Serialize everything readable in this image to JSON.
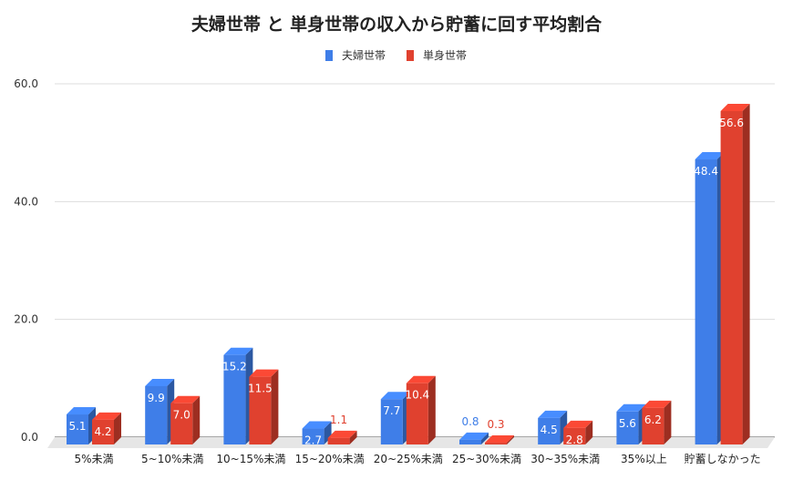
{
  "chart_data": {
    "type": "bar",
    "style": "3d-grouped",
    "title": "夫婦世帯 と 単身世帯の収入から貯蓄に回す平均割合",
    "xlabel": "",
    "ylabel": "",
    "ylim": [
      0,
      60
    ],
    "yticks": [
      "0.0",
      "20.0",
      "40.0",
      "60.0"
    ],
    "ytick_values": [
      0,
      20,
      40,
      60
    ],
    "grid": true,
    "legend_position": "top",
    "categories": [
      "5%未満",
      "5~10%未満",
      "10~15%未満",
      "15~20%未満",
      "20~25%未満",
      "25~30%未満",
      "30~35%未満",
      "35%以上",
      "貯蓄しなかった"
    ],
    "series": [
      {
        "name": "夫婦世帯",
        "color": "#3f7ee8",
        "values": [
          5.1,
          9.9,
          15.2,
          2.7,
          7.7,
          0.8,
          4.5,
          5.6,
          48.4
        ],
        "labels": [
          "5.1",
          "9.9",
          "15.2",
          "2.7",
          "7.7",
          "0.8",
          "4.5",
          "5.6",
          "48.4"
        ]
      },
      {
        "name": "単身世帯",
        "color": "#e0412f",
        "values": [
          4.2,
          7.0,
          11.5,
          1.1,
          10.4,
          0.3,
          2.8,
          6.2,
          56.6
        ],
        "labels": [
          "4.2",
          "7.0",
          "11.5",
          "1.1",
          "10.4",
          "0.3",
          "2.8",
          "6.2",
          "56.6"
        ]
      }
    ]
  }
}
